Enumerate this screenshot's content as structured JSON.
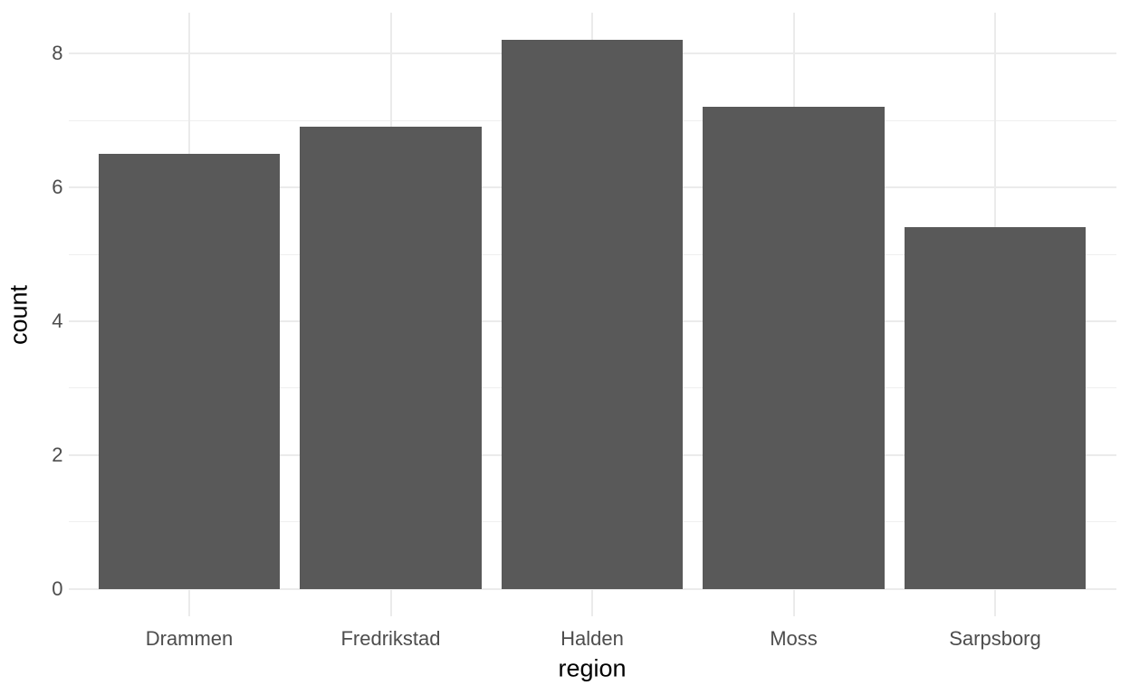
{
  "chart_data": {
    "type": "bar",
    "title": "",
    "xlabel": "region",
    "ylabel": "count",
    "categories": [
      "Drammen",
      "Fredrikstad",
      "Halden",
      "Moss",
      "Sarpsborg"
    ],
    "values": [
      6.5,
      6.9,
      8.2,
      7.2,
      5.4
    ],
    "yticks": [
      0,
      2,
      4,
      6,
      8
    ],
    "yticks_minor": [
      1,
      3,
      5,
      7
    ],
    "ylim": [
      0,
      8.2
    ],
    "grid": "major and minor horizontal, major vertical at category centers",
    "legend": "none",
    "colors": {
      "bar_fill": "#595959",
      "grid_major": "#EBEBEB",
      "grid_minor": "#EFEFEF",
      "tick_label": "#4D4D4D",
      "axis_title": "#000000",
      "background": "#FFFFFF"
    }
  }
}
